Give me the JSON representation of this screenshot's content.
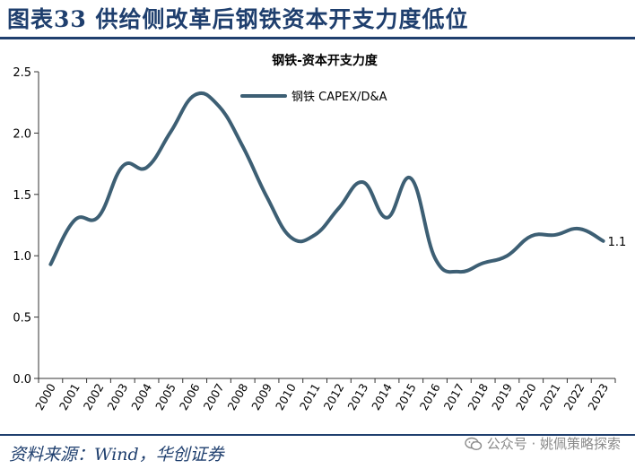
{
  "figure_title": "图表33  供给侧改革后钢铁资本开支力度低位",
  "source_text": "资料来源：Wind，华创证券",
  "watermark": {
    "text": "公众号 · 姚佩策略探索",
    "icon": "wechat-icon"
  },
  "colors": {
    "title": "#1f3f6e",
    "line": "#3d5f74",
    "axis": "#333333"
  },
  "chart_data": {
    "type": "line",
    "title": "钢铁-资本开支力度",
    "xlabel": "",
    "ylabel": "",
    "x": [
      2000,
      2001,
      2002,
      2003,
      2004,
      2005,
      2006,
      2007,
      2008,
      2009,
      2010,
      2011,
      2012,
      2013,
      2014,
      2015,
      2016,
      2017,
      2018,
      2019,
      2020,
      2021,
      2022,
      2023
    ],
    "x_tick_labels": [
      "2000",
      "2001",
      "2002",
      "2003",
      "2004",
      "2005",
      "2006",
      "2007",
      "2008",
      "2009",
      "2010",
      "2011",
      "2012",
      "2013",
      "2014",
      "2015",
      "2016",
      "2017",
      "2018",
      "2019",
      "2020",
      "2021",
      "2022",
      "2023"
    ],
    "ylim": [
      0.0,
      2.5
    ],
    "y_ticks": [
      "0.0",
      "0.5",
      "1.0",
      "1.5",
      "2.0",
      "2.5"
    ],
    "grid": false,
    "legend_position": "top-center",
    "series": [
      {
        "name": "钢铁 CAPEX/D&A",
        "values": [
          0.93,
          1.29,
          1.32,
          1.73,
          1.72,
          2.01,
          2.31,
          2.22,
          1.89,
          1.48,
          1.15,
          1.17,
          1.39,
          1.6,
          1.31,
          1.63,
          0.98,
          0.87,
          0.94,
          1.0,
          1.16,
          1.17,
          1.22,
          1.12
        ]
      }
    ],
    "annotations": [
      {
        "x": 2023,
        "text": "1.1"
      }
    ]
  }
}
